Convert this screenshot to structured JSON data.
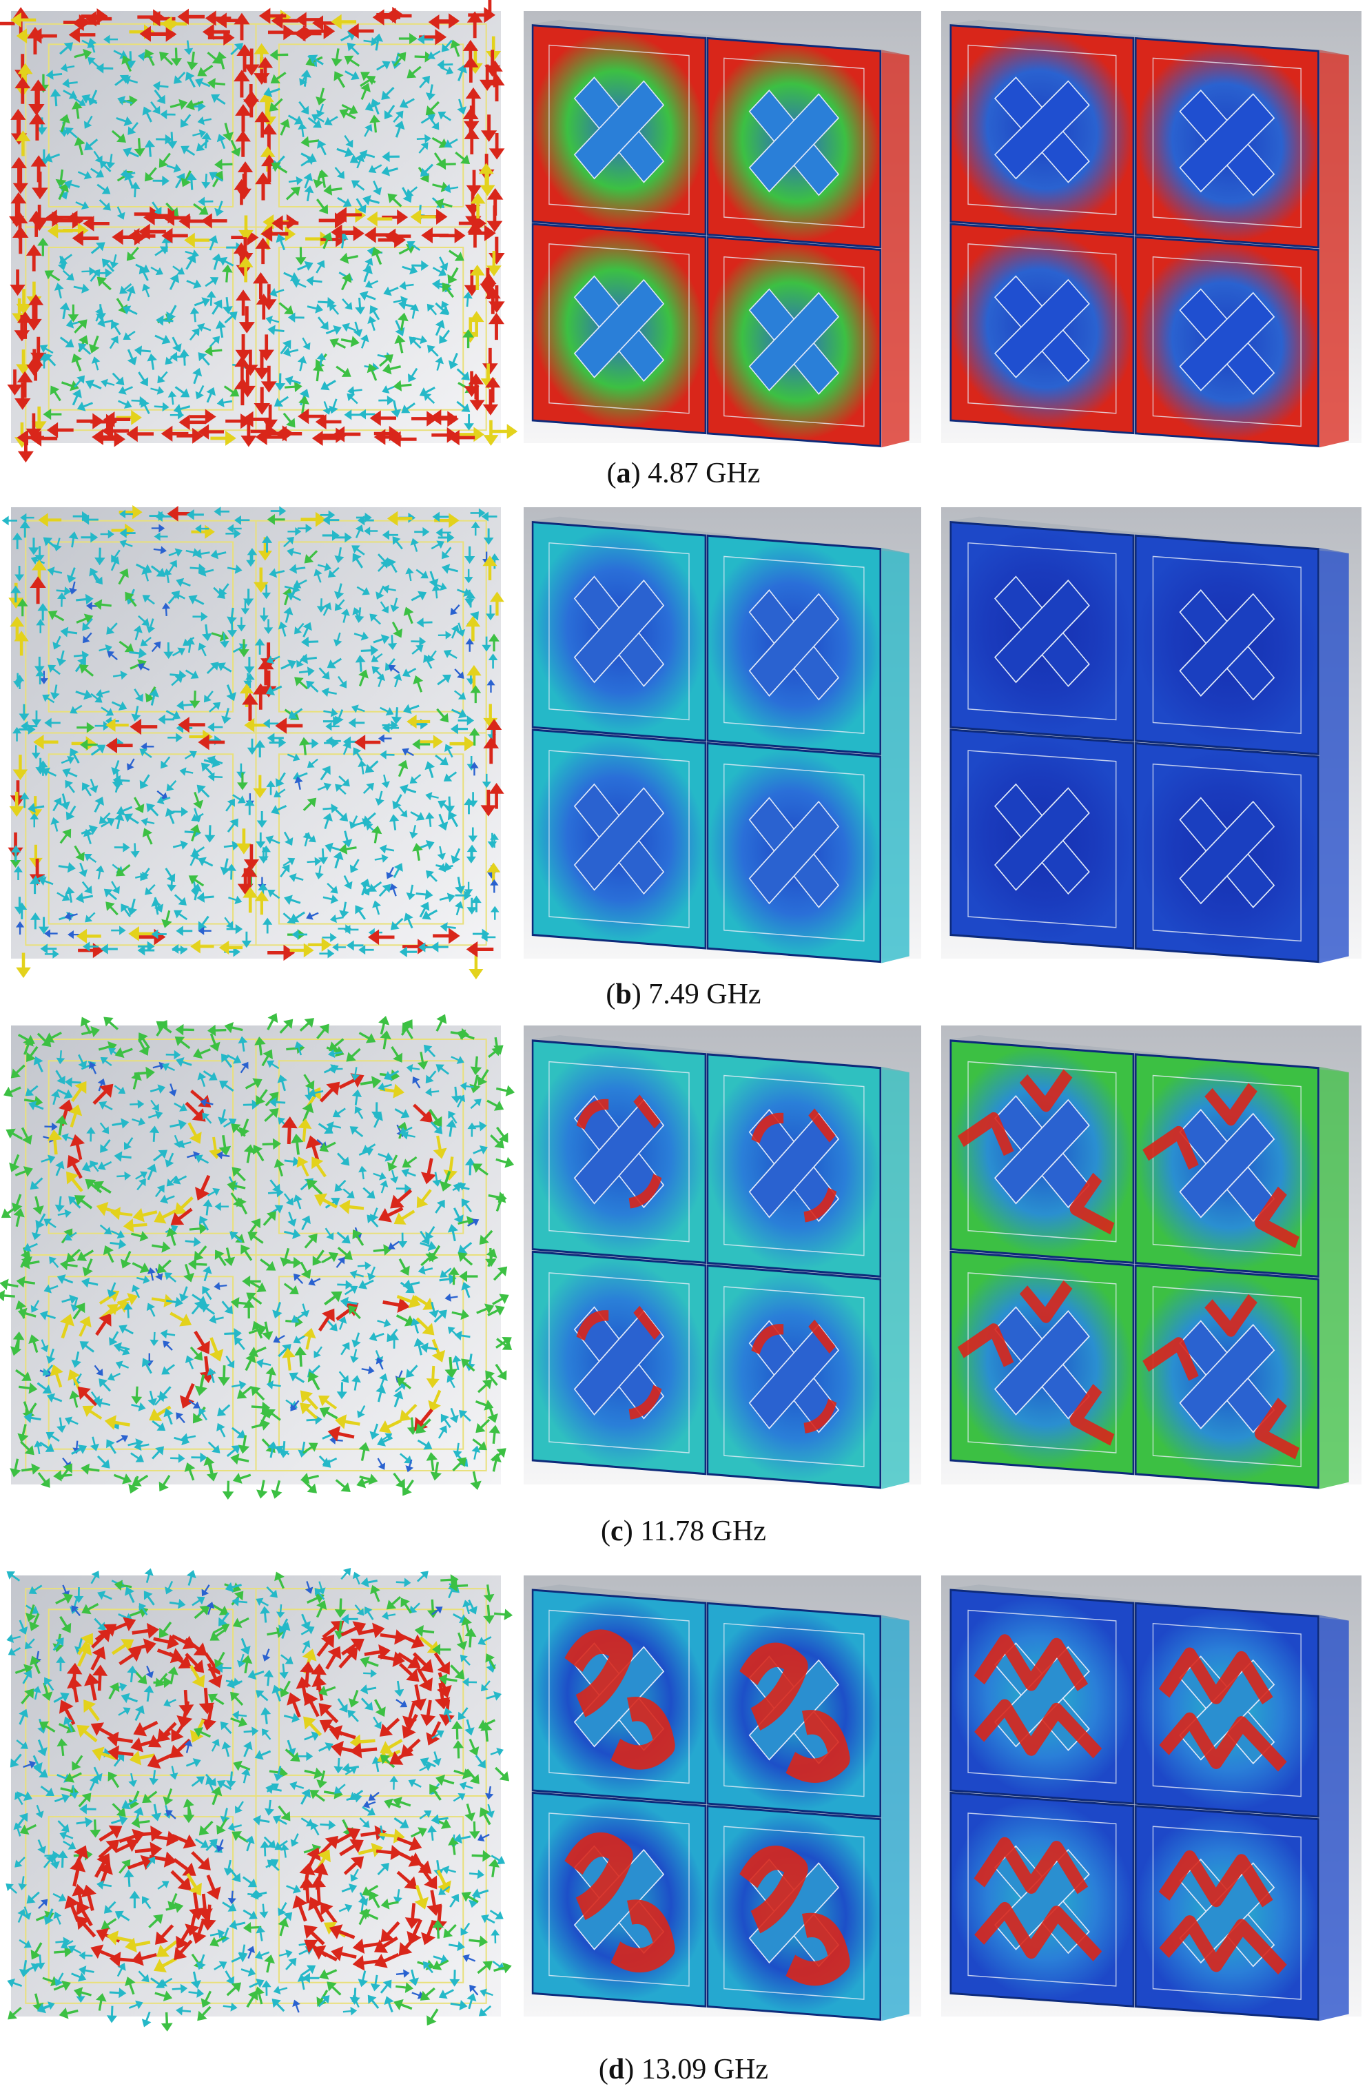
{
  "panels": [
    {
      "caption": [
        "(",
        "a",
        ") 4.87 GHz"
      ]
    },
    {
      "caption": [
        "(",
        "b",
        ") 7.49 GHz"
      ]
    },
    {
      "caption": [
        "(",
        "c",
        ") 11.78 GHz"
      ]
    },
    {
      "caption": [
        "(",
        "d",
        ") 13.09 GHz"
      ]
    }
  ]
}
